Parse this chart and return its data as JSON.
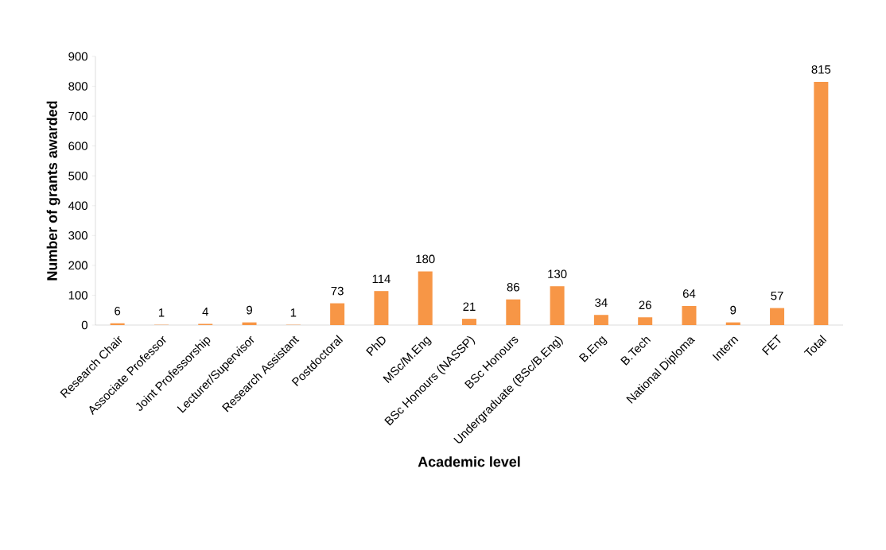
{
  "chart_data": {
    "type": "bar",
    "xlabel": "Academic level",
    "ylabel": "Number of grants awarded",
    "categories": [
      "Research Chair",
      "Associate Professor",
      "Joint Professorship",
      "Lecturer/Supervisor",
      "Research Assistant",
      "Postdoctoral",
      "PhD",
      "MSc/M.Eng",
      "BSc Honours (NASSP)",
      "BSc Honours",
      "Undergraduate (BSc/B.Eng)",
      "B.Eng",
      "B.Tech",
      "National Diploma",
      "Intern",
      "FET",
      "Total"
    ],
    "values": [
      6,
      1,
      4,
      9,
      1,
      73,
      114,
      180,
      21,
      86,
      130,
      34,
      26,
      64,
      9,
      57,
      815
    ],
    "color": "#f79646",
    "ylim": [
      0,
      900
    ],
    "yticks": [
      0,
      100,
      200,
      300,
      400,
      500,
      600,
      700,
      800,
      900
    ],
    "data_labels": true
  }
}
